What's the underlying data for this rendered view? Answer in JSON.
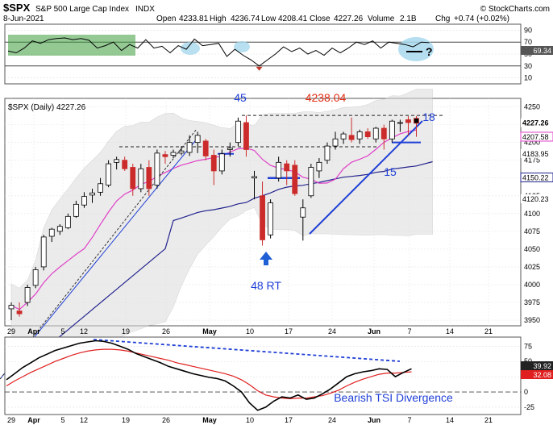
{
  "header": {
    "symbol": "$SPX",
    "name": "S&P 500 Large Cap Index",
    "exchange": "INDX",
    "date": "8-Jun-2021",
    "open_label": "Open",
    "open": "4233.81",
    "high_label": "High",
    "high": "4236.74",
    "low_label": "Low",
    "low": "4208.41",
    "close_label": "Close",
    "close": "4227.26",
    "volume_label": "Volume",
    "volume": "2.1B",
    "chg_label": "Chg",
    "chg": "+0.74 (+0.02%)",
    "credit": "© StockCharts.com"
  },
  "chart_data": [
    {
      "panel": "rsi",
      "type": "line",
      "y_ticks": [
        90,
        70,
        50,
        30,
        10
      ],
      "ylim": [
        0,
        100
      ],
      "last_value_label": "69.34",
      "question_mark": "?",
      "values": [
        55,
        52,
        60,
        72,
        68,
        74,
        76,
        77,
        74,
        76,
        73,
        60,
        64,
        70,
        56,
        66,
        60,
        74,
        60,
        63,
        52,
        64,
        58,
        75,
        64,
        66,
        68,
        46,
        58,
        48,
        40,
        30,
        40,
        50,
        62,
        54,
        60,
        50,
        56,
        48,
        60,
        52,
        60,
        70,
        66,
        72,
        60,
        70,
        68,
        66,
        62,
        70,
        69
      ]
    },
    {
      "panel": "price",
      "type": "candlestick",
      "title": "$SPX (Daily) 4227.26",
      "x_tick_labels": [
        "29",
        "Apr",
        "5",
        "12",
        "19",
        "26",
        "May",
        "10",
        "17",
        "24",
        "Jun",
        "7",
        "14",
        "21"
      ],
      "y_tick_labels": [
        "4250",
        "4225",
        "4200",
        "4175",
        "4150",
        "4125",
        "4100",
        "4075",
        "4050",
        "4025",
        "4000",
        "3975",
        "3950"
      ],
      "right_value_labels": [
        "4227.26",
        "4207.58",
        "4183.95",
        "4150.22",
        "4120.23"
      ],
      "annotations": [
        "45",
        "4238.04",
        "18",
        "15",
        "48 RT"
      ],
      "candles": [
        {
          "o": 3966,
          "h": 3975,
          "l": 3950,
          "c": 3971
        },
        {
          "o": 3963,
          "h": 3975,
          "l": 3955,
          "c": 3959
        },
        {
          "o": 3975,
          "h": 4000,
          "l": 3970,
          "c": 3996
        },
        {
          "o": 3999,
          "h": 4025,
          "l": 3995,
          "c": 4021
        },
        {
          "o": 4025,
          "h": 4070,
          "l": 4020,
          "c": 4067
        },
        {
          "o": 4068,
          "h": 4080,
          "l": 4060,
          "c": 4078
        },
        {
          "o": 4075,
          "h": 4085,
          "l": 4070,
          "c": 4082
        },
        {
          "o": 4080,
          "h": 4100,
          "l": 4078,
          "c": 4096
        },
        {
          "o": 4096,
          "h": 4118,
          "l": 4094,
          "c": 4113
        },
        {
          "o": 4112,
          "h": 4130,
          "l": 4108,
          "c": 4124
        },
        {
          "o": 4126,
          "h": 4135,
          "l": 4115,
          "c": 4129
        },
        {
          "o": 4130,
          "h": 4150,
          "l": 4125,
          "c": 4142
        },
        {
          "o": 4140,
          "h": 4175,
          "l": 4137,
          "c": 4170
        },
        {
          "o": 4172,
          "h": 4180,
          "l": 4162,
          "c": 4176
        },
        {
          "o": 4175,
          "h": 4180,
          "l": 4160,
          "c": 4163
        },
        {
          "o": 4165,
          "h": 4170,
          "l": 4125,
          "c": 4135
        },
        {
          "o": 4135,
          "h": 4170,
          "l": 4130,
          "c": 4163
        },
        {
          "o": 4165,
          "h": 4175,
          "l": 4125,
          "c": 4135
        },
        {
          "o": 4140,
          "h": 4190,
          "l": 4135,
          "c": 4185
        },
        {
          "o": 4183,
          "h": 4188,
          "l": 4170,
          "c": 4180
        },
        {
          "o": 4182,
          "h": 4190,
          "l": 4178,
          "c": 4186
        },
        {
          "o": 4185,
          "h": 4195,
          "l": 4182,
          "c": 4188
        },
        {
          "o": 4186,
          "h": 4210,
          "l": 4181,
          "c": 4200
        },
        {
          "o": 4200,
          "h": 4215,
          "l": 4185,
          "c": 4210
        },
        {
          "o": 4202,
          "h": 4205,
          "l": 4175,
          "c": 4181
        },
        {
          "o": 4182,
          "h": 4190,
          "l": 4140,
          "c": 4160
        },
        {
          "o": 4160,
          "h": 4190,
          "l": 4155,
          "c": 4184
        },
        {
          "o": 4190,
          "h": 4200,
          "l": 4180,
          "c": 4192
        },
        {
          "o": 4200,
          "h": 4235,
          "l": 4195,
          "c": 4230
        },
        {
          "o": 4228,
          "h": 4238,
          "l": 4180,
          "c": 4190
        },
        {
          "o": 4150,
          "h": 4160,
          "l": 4120,
          "c": 4152
        },
        {
          "o": 4125,
          "h": 4145,
          "l": 4055,
          "c": 4063
        },
        {
          "o": 4070,
          "h": 4120,
          "l": 4065,
          "c": 4115
        },
        {
          "o": 4150,
          "h": 4180,
          "l": 4145,
          "c": 4172
        },
        {
          "o": 4170,
          "h": 4175,
          "l": 4140,
          "c": 4160
        },
        {
          "o": 4168,
          "h": 4175,
          "l": 4125,
          "c": 4128
        },
        {
          "o": 4095,
          "h": 4120,
          "l": 4062,
          "c": 4108
        },
        {
          "o": 4125,
          "h": 4170,
          "l": 4122,
          "c": 4165
        },
        {
          "o": 4160,
          "h": 4178,
          "l": 4150,
          "c": 4172
        },
        {
          "o": 4175,
          "h": 4200,
          "l": 4170,
          "c": 4195
        },
        {
          "o": 4195,
          "h": 4215,
          "l": 4190,
          "c": 4205
        },
        {
          "o": 4205,
          "h": 4215,
          "l": 4198,
          "c": 4212
        },
        {
          "o": 4210,
          "h": 4235,
          "l": 4200,
          "c": 4204
        },
        {
          "o": 4205,
          "h": 4218,
          "l": 4198,
          "c": 4215
        },
        {
          "o": 4215,
          "h": 4220,
          "l": 4205,
          "c": 4208
        },
        {
          "o": 4205,
          "h": 4222,
          "l": 4200,
          "c": 4220
        },
        {
          "o": 4220,
          "h": 4225,
          "l": 4190,
          "c": 4205
        },
        {
          "o": 4205,
          "h": 4232,
          "l": 4200,
          "c": 4230
        },
        {
          "o": 4228,
          "h": 4232,
          "l": 4215,
          "c": 4228
        },
        {
          "o": 4232,
          "h": 4237,
          "l": 4210,
          "c": 4228
        },
        {
          "o": 4234,
          "h": 4237,
          "l": 4208,
          "c": 4227
        }
      ]
    },
    {
      "panel": "tsi",
      "type": "line",
      "y_ticks": [
        75,
        50,
        25,
        0,
        -25
      ],
      "ylim": [
        -37,
        90
      ],
      "right_value_labels": [
        "39.92",
        "32.08"
      ],
      "annotation": "Bearish TSI Divergence",
      "tsi": [
        20,
        30,
        40,
        48,
        56,
        62,
        68,
        72,
        76,
        80,
        82,
        84,
        83,
        80,
        75,
        70,
        63,
        58,
        53,
        48,
        42,
        38,
        34,
        30,
        27,
        24,
        22,
        18,
        10,
        0,
        -18,
        -30,
        -25,
        -15,
        -8,
        -10,
        -5,
        -12,
        -10,
        -3,
        5,
        15,
        25,
        30,
        33,
        35,
        38,
        37,
        25,
        32,
        38
      ],
      "signal": [
        10,
        18,
        25,
        32,
        38,
        44,
        50,
        55,
        60,
        64,
        67,
        69,
        70,
        70,
        69,
        67,
        64,
        61,
        58,
        55,
        52,
        48,
        45,
        42,
        39,
        36,
        33,
        30,
        26,
        20,
        12,
        2,
        -5,
        -8,
        -10,
        -11,
        -10,
        -10,
        -8,
        -6,
        -2,
        3,
        10,
        16,
        21,
        25,
        29,
        31,
        31,
        32,
        33
      ]
    }
  ]
}
